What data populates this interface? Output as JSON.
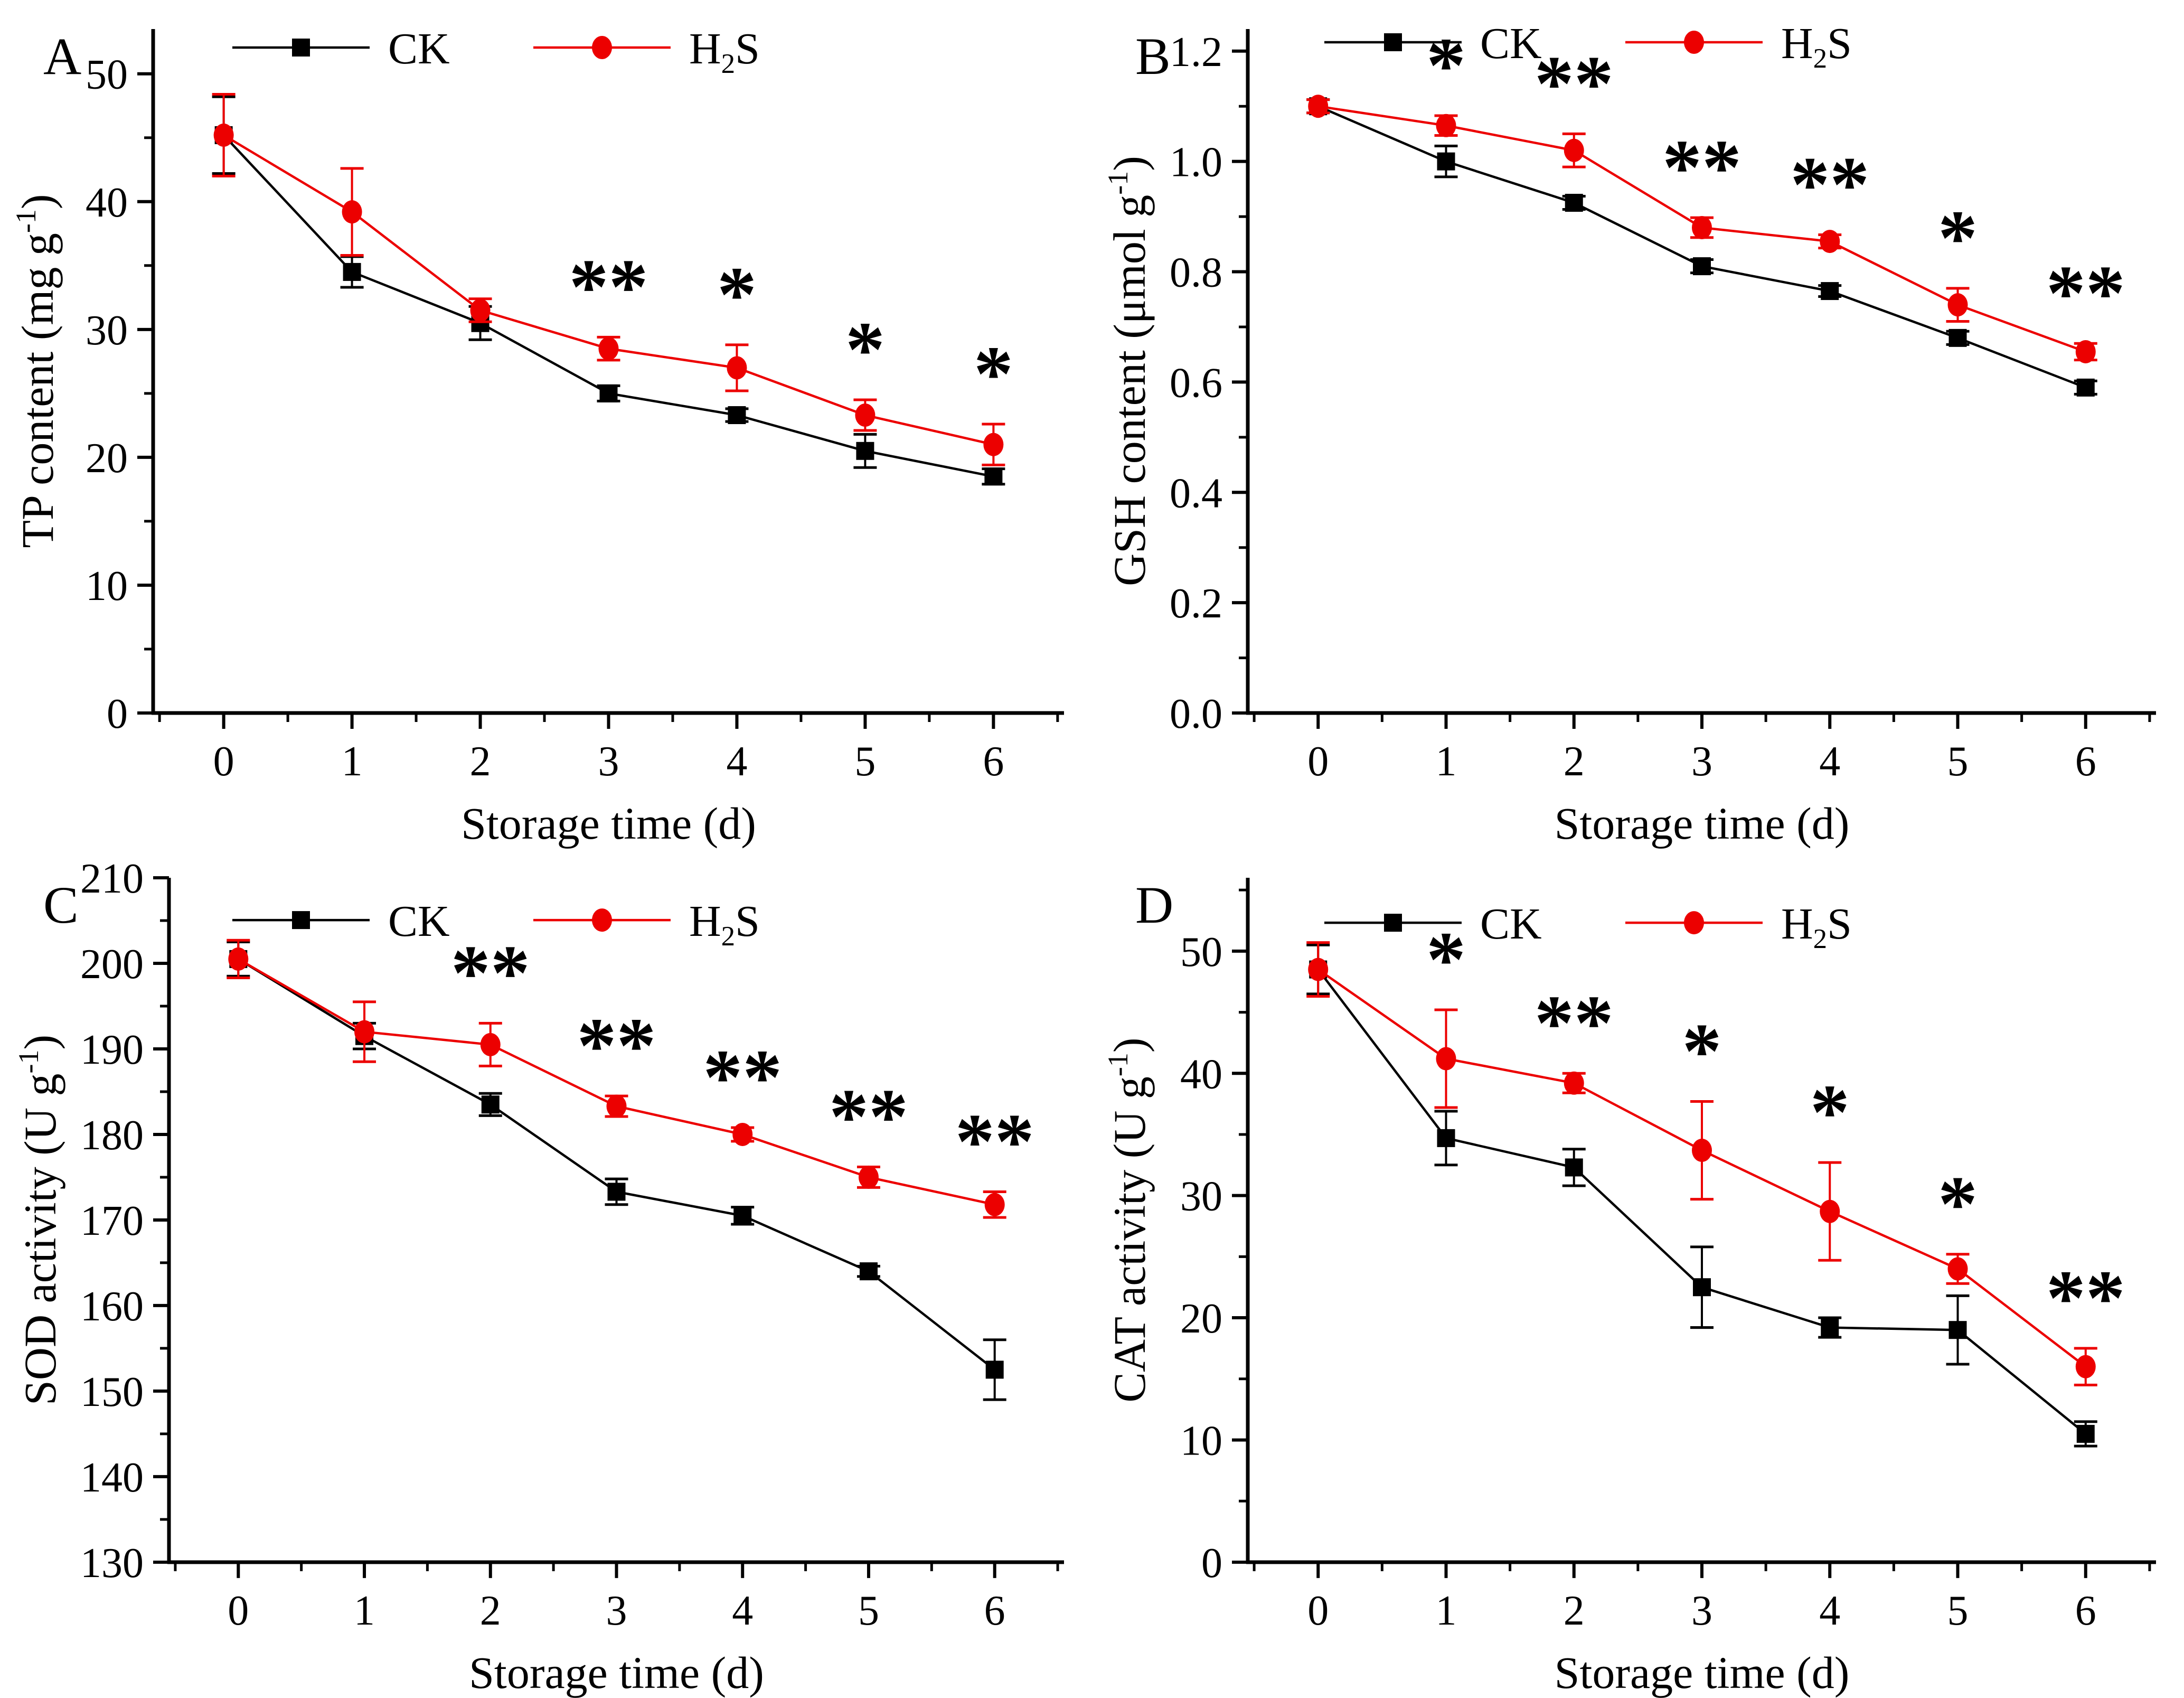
{
  "figure": {
    "background": "#ffffff",
    "series_colors": {
      "ck": "#000000",
      "h2s": "#EC0000"
    },
    "x_axis_label": "Storage time (d)"
  },
  "chart_data": [
    {
      "type": "line",
      "panel_label": "A",
      "xlabel": "Storage time (d)",
      "ylabel": "TP content (mg g⁻¹)",
      "ylabel_parts": [
        {
          "t": "TP content (mg g"
        },
        {
          "t": "-1",
          "sup": true
        },
        {
          "t": ")"
        }
      ],
      "x": [
        0,
        1,
        2,
        3,
        4,
        5,
        6
      ],
      "xlim": [
        -0.55,
        6.55
      ],
      "ylim": [
        0,
        53.5
      ],
      "xticks": [
        0,
        1,
        2,
        3,
        4,
        5,
        6
      ],
      "xtick_labels": [
        "0",
        "1",
        "2",
        "3",
        "4",
        "5",
        "6"
      ],
      "xminor_step": 0.5,
      "yticks": [
        0,
        10,
        20,
        30,
        40,
        50
      ],
      "ytick_labels": [
        "0",
        "10",
        "20",
        "30",
        "40",
        "50"
      ],
      "yminor_step": 5,
      "grid": false,
      "legend_position": "top-inside",
      "series": [
        {
          "name": "CK",
          "name_parts": [
            {
              "t": "CK"
            }
          ],
          "color": "#000000",
          "marker": "square",
          "values": [
            45.2,
            34.5,
            30.5,
            25.0,
            23.3,
            20.5,
            18.5
          ],
          "errors": [
            3.0,
            1.2,
            1.3,
            0.6,
            0.5,
            1.3,
            0.6
          ]
        },
        {
          "name": "H2S",
          "name_parts": [
            {
              "t": "H"
            },
            {
              "t": "2",
              "sub": true
            },
            {
              "t": "S"
            }
          ],
          "color": "#EC0000",
          "marker": "circle",
          "values": [
            45.2,
            39.2,
            31.5,
            28.5,
            27.0,
            23.3,
            21.0
          ],
          "errors": [
            3.2,
            3.4,
            0.9,
            0.9,
            1.8,
            1.2,
            1.6
          ]
        }
      ],
      "significance": [
        {
          "x": 3,
          "label": "**"
        },
        {
          "x": 4,
          "label": "*"
        },
        {
          "x": 5,
          "label": "*"
        },
        {
          "x": 6,
          "label": "*"
        }
      ],
      "layout": {
        "left_margin": 290,
        "legend_y": 90,
        "ylabel_x": 100
      }
    },
    {
      "type": "line",
      "panel_label": "B",
      "xlabel": "Storage time (d)",
      "ylabel": "GSH content (μmol g⁻¹)",
      "ylabel_parts": [
        {
          "t": "GSH content (μmol g"
        },
        {
          "t": "-1",
          "sup": true
        },
        {
          "t": ")"
        }
      ],
      "x": [
        0,
        1,
        2,
        3,
        4,
        5,
        6
      ],
      "xlim": [
        -0.55,
        6.55
      ],
      "ylim": [
        0,
        1.24
      ],
      "xticks": [
        0,
        1,
        2,
        3,
        4,
        5,
        6
      ],
      "xtick_labels": [
        "0",
        "1",
        "2",
        "3",
        "4",
        "5",
        "6"
      ],
      "xminor_step": 0.5,
      "yticks": [
        0.0,
        0.2,
        0.4,
        0.6,
        0.8,
        1.0,
        1.2
      ],
      "ytick_labels": [
        "0.0",
        "0.2",
        "0.4",
        "0.6",
        "0.8",
        "1.0",
        "1.2"
      ],
      "yminor_step": 0.1,
      "grid": false,
      "legend_position": "top-inside",
      "series": [
        {
          "name": "CK",
          "name_parts": [
            {
              "t": "CK"
            }
          ],
          "color": "#000000",
          "marker": "square",
          "values": [
            1.1,
            1.0,
            0.925,
            0.81,
            0.765,
            0.68,
            0.59
          ],
          "errors": [
            0.012,
            0.028,
            0.012,
            0.012,
            0.01,
            0.012,
            0.012
          ]
        },
        {
          "name": "H2S",
          "name_parts": [
            {
              "t": "H"
            },
            {
              "t": "2",
              "sub": true
            },
            {
              "t": "S"
            }
          ],
          "color": "#EC0000",
          "marker": "circle",
          "values": [
            1.1,
            1.065,
            1.02,
            0.88,
            0.855,
            0.74,
            0.655
          ],
          "errors": [
            0.012,
            0.018,
            0.03,
            0.018,
            0.012,
            0.03,
            0.015
          ]
        }
      ],
      "significance": [
        {
          "x": 1,
          "label": "*"
        },
        {
          "x": 2,
          "label": "**"
        },
        {
          "x": 3,
          "label": "**"
        },
        {
          "x": 4,
          "label": "**"
        },
        {
          "x": 5,
          "label": "*"
        },
        {
          "x": 6,
          "label": "**"
        }
      ],
      "layout": {
        "left_margin": 295,
        "legend_y": 80,
        "ylabel_x": 100
      }
    },
    {
      "type": "line",
      "panel_label": "C",
      "xlabel": "Storage time (d)",
      "ylabel": "SOD activity (U g⁻¹)",
      "ylabel_parts": [
        {
          "t": "SOD activity (U g"
        },
        {
          "t": "-1",
          "sup": true
        },
        {
          "t": ")"
        }
      ],
      "x": [
        0,
        1,
        2,
        3,
        4,
        5,
        6
      ],
      "xlim": [
        -0.55,
        6.55
      ],
      "ylim": [
        130,
        210
      ],
      "xticks": [
        0,
        1,
        2,
        3,
        4,
        5,
        6
      ],
      "xtick_labels": [
        "0",
        "1",
        "2",
        "3",
        "4",
        "5",
        "6"
      ],
      "xminor_step": 0.5,
      "yticks": [
        130,
        140,
        150,
        160,
        170,
        180,
        190,
        200,
        210
      ],
      "ytick_labels": [
        "130",
        "140",
        "150",
        "160",
        "170",
        "180",
        "190",
        "200",
        "210"
      ],
      "yminor_step": 5,
      "grid": false,
      "legend_position": "top-inside",
      "series": [
        {
          "name": "CK",
          "name_parts": [
            {
              "t": "CK"
            }
          ],
          "color": "#000000",
          "marker": "square",
          "values": [
            200.5,
            191.5,
            183.5,
            173.3,
            170.5,
            164.0,
            152.5
          ],
          "errors": [
            2.0,
            1.5,
            1.3,
            1.5,
            1.0,
            0.6,
            3.5
          ]
        },
        {
          "name": "H2S",
          "name_parts": [
            {
              "t": "H"
            },
            {
              "t": "2",
              "sub": true
            },
            {
              "t": "S"
            }
          ],
          "color": "#EC0000",
          "marker": "circle",
          "values": [
            200.5,
            192.0,
            190.5,
            183.3,
            180.0,
            175.0,
            171.8
          ],
          "errors": [
            2.2,
            3.5,
            2.5,
            1.2,
            0.8,
            1.2,
            1.5
          ]
        }
      ],
      "significance": [
        {
          "x": 2,
          "label": "**"
        },
        {
          "x": 3,
          "label": "**"
        },
        {
          "x": 4,
          "label": "**"
        },
        {
          "x": 5,
          "label": "**"
        },
        {
          "x": 6,
          "label": "**"
        }
      ],
      "layout": {
        "left_margin": 320,
        "legend_y": 135,
        "ylabel_x": 105
      }
    },
    {
      "type": "line",
      "panel_label": "D",
      "xlabel": "Storage time (d)",
      "ylabel": "CAT activity (U g⁻¹)",
      "ylabel_parts": [
        {
          "t": "CAT activity (U g"
        },
        {
          "t": "-1",
          "sup": true
        },
        {
          "t": ")"
        }
      ],
      "x": [
        0,
        1,
        2,
        3,
        4,
        5,
        6
      ],
      "xlim": [
        -0.55,
        6.55
      ],
      "ylim": [
        0,
        56
      ],
      "xticks": [
        0,
        1,
        2,
        3,
        4,
        5,
        6
      ],
      "xtick_labels": [
        "0",
        "1",
        "2",
        "3",
        "4",
        "5",
        "6"
      ],
      "xminor_step": 0.5,
      "yticks": [
        0,
        10,
        20,
        30,
        40,
        50
      ],
      "ytick_labels": [
        "0",
        "10",
        "20",
        "30",
        "40",
        "50"
      ],
      "yminor_step": 5,
      "grid": false,
      "legend_position": "top-inside",
      "series": [
        {
          "name": "CK",
          "name_parts": [
            {
              "t": "CK"
            }
          ],
          "color": "#000000",
          "marker": "square",
          "values": [
            48.5,
            34.7,
            32.3,
            22.5,
            19.2,
            19.0,
            10.5
          ],
          "errors": [
            2.0,
            2.2,
            1.5,
            3.3,
            0.8,
            2.8,
            1.0
          ]
        },
        {
          "name": "H2S",
          "name_parts": [
            {
              "t": "H"
            },
            {
              "t": "2",
              "sub": true
            },
            {
              "t": "S"
            }
          ],
          "color": "#EC0000",
          "marker": "circle",
          "values": [
            48.5,
            41.2,
            39.2,
            33.7,
            28.7,
            24.0,
            16.0
          ],
          "errors": [
            2.2,
            4.0,
            0.8,
            4.0,
            4.0,
            1.2,
            1.5
          ]
        }
      ],
      "significance": [
        {
          "x": 1,
          "label": "*"
        },
        {
          "x": 2,
          "label": "**"
        },
        {
          "x": 3,
          "label": "*"
        },
        {
          "x": 4,
          "label": "*"
        },
        {
          "x": 5,
          "label": "*"
        },
        {
          "x": 6,
          "label": "**"
        }
      ],
      "layout": {
        "left_margin": 295,
        "legend_y": 140,
        "ylabel_x": 100
      }
    }
  ]
}
